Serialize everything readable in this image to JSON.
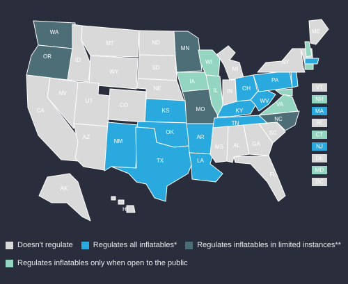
{
  "colors": {
    "background": "#2a2d3c",
    "none": "#d9d9d9",
    "all": "#2aa9de",
    "limited": "#4d6e77",
    "public": "#93d5c0",
    "border": "#ffffff"
  },
  "states": [
    {
      "abbr": "WA",
      "category": "limited"
    },
    {
      "abbr": "OR",
      "category": "limited"
    },
    {
      "abbr": "CA",
      "category": "none"
    },
    {
      "abbr": "NV",
      "category": "none"
    },
    {
      "abbr": "ID",
      "category": "none"
    },
    {
      "abbr": "MT",
      "category": "none"
    },
    {
      "abbr": "WY",
      "category": "none"
    },
    {
      "abbr": "UT",
      "category": "none"
    },
    {
      "abbr": "AZ",
      "category": "none"
    },
    {
      "abbr": "CO",
      "category": "none"
    },
    {
      "abbr": "NM",
      "category": "all"
    },
    {
      "abbr": "ND",
      "category": "none"
    },
    {
      "abbr": "SD",
      "category": "none"
    },
    {
      "abbr": "NE",
      "category": "none"
    },
    {
      "abbr": "KS",
      "category": "all"
    },
    {
      "abbr": "OK",
      "category": "all"
    },
    {
      "abbr": "TX",
      "category": "all"
    },
    {
      "abbr": "MN",
      "category": "limited"
    },
    {
      "abbr": "IA",
      "category": "public"
    },
    {
      "abbr": "MO",
      "category": "limited"
    },
    {
      "abbr": "AR",
      "category": "all"
    },
    {
      "abbr": "LA",
      "category": "all"
    },
    {
      "abbr": "WI",
      "category": "public"
    },
    {
      "abbr": "IL",
      "category": "public"
    },
    {
      "abbr": "MI",
      "category": "none"
    },
    {
      "abbr": "IN",
      "category": "none"
    },
    {
      "abbr": "OH",
      "category": "all"
    },
    {
      "abbr": "KY",
      "category": "all"
    },
    {
      "abbr": "TN",
      "category": "all"
    },
    {
      "abbr": "MS",
      "category": "none"
    },
    {
      "abbr": "AL",
      "category": "none"
    },
    {
      "abbr": "GA",
      "category": "none"
    },
    {
      "abbr": "FL",
      "category": "none"
    },
    {
      "abbr": "SC",
      "category": "none"
    },
    {
      "abbr": "NC",
      "category": "limited"
    },
    {
      "abbr": "VA",
      "category": "public"
    },
    {
      "abbr": "WV",
      "category": "all"
    },
    {
      "abbr": "PA",
      "category": "all"
    },
    {
      "abbr": "NY",
      "category": "none"
    },
    {
      "abbr": "ME",
      "category": "none"
    },
    {
      "abbr": "AK",
      "category": "none"
    },
    {
      "abbr": "HI",
      "category": "none"
    }
  ],
  "side_boxes": [
    {
      "abbr": "VT",
      "category": "none"
    },
    {
      "abbr": "NH",
      "category": "public"
    },
    {
      "abbr": "MA",
      "category": "all"
    },
    {
      "abbr": "RI",
      "category": "none"
    },
    {
      "abbr": "CT",
      "category": "public"
    },
    {
      "abbr": "NJ",
      "category": "all"
    },
    {
      "abbr": "DE",
      "category": "none"
    },
    {
      "abbr": "MD",
      "category": "public"
    },
    {
      "abbr": "DC",
      "category": "none"
    }
  ],
  "legend": {
    "none": "Doesn't regulate",
    "all": "Regulates all inflatables*",
    "limited": "Regulates inflatables in limited instances**",
    "public": "Regulates inflatables only when open to the public"
  }
}
